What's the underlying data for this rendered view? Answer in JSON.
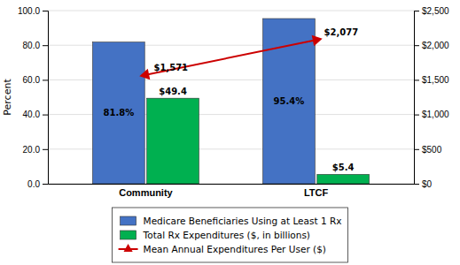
{
  "chart_data": {
    "type": "bar",
    "categories": [
      "Community",
      "LTCF"
    ],
    "ylabel": "Percent",
    "series": [
      {
        "name": "Medicare Beneficiaries Using at Least 1 Rx",
        "color": "#4472C4",
        "values": [
          81.8,
          95.4
        ],
        "value_labels": [
          "81.8%",
          "95.4%"
        ]
      },
      {
        "name": "Total Rx Expenditures ($, in billions)",
        "color": "#00B050",
        "values": [
          49.4,
          5.4
        ],
        "value_labels": [
          "$49.4",
          "$5.4"
        ]
      },
      {
        "name": "Mean Annual Expenditures Per User ($)",
        "type": "line",
        "axis": "y2",
        "color": "#CC0000",
        "marker": "triangle",
        "values": [
          1571,
          2077
        ],
        "value_labels": [
          "$1,571",
          "$2,077"
        ]
      }
    ],
    "ylim": [
      0,
      100
    ],
    "yticks": [
      {
        "value": 0,
        "label": "0.0"
      },
      {
        "value": 20,
        "label": "20.0"
      },
      {
        "value": 40,
        "label": "40.0"
      },
      {
        "value": 60,
        "label": "60.0"
      },
      {
        "value": 80,
        "label": "80.0"
      },
      {
        "value": 100,
        "label": "100.0"
      }
    ],
    "y2lim": [
      0,
      2500
    ],
    "y2ticks": [
      {
        "value": 0,
        "label": "$0"
      },
      {
        "value": 500,
        "label": "$500"
      },
      {
        "value": 1000,
        "label": "$1,000"
      },
      {
        "value": 1500,
        "label": "$1,500"
      },
      {
        "value": 2000,
        "label": "$2,000"
      },
      {
        "value": 2500,
        "label": "$2,500"
      }
    ],
    "grid": true,
    "legend": "bottom",
    "data_labels": true
  }
}
